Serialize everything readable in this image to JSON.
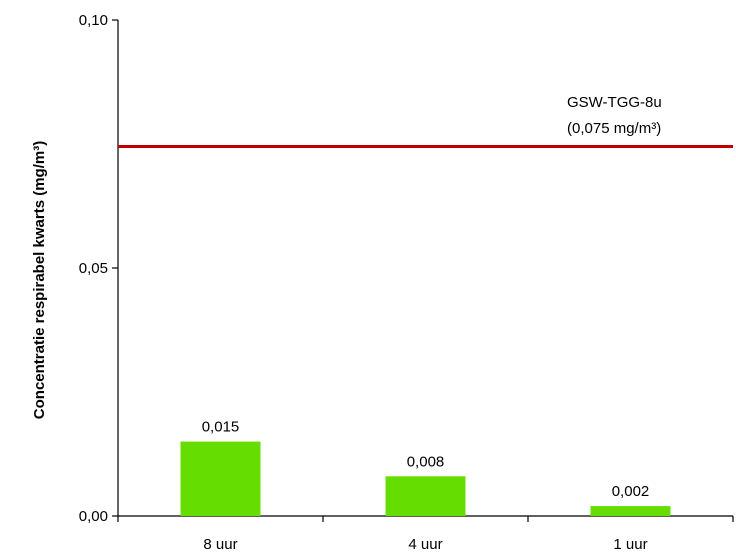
{
  "chart_data": {
    "type": "bar",
    "categories": [
      "8 uur",
      "4 uur",
      "1 uur"
    ],
    "values": [
      0.015,
      0.008,
      0.002
    ],
    "value_labels": [
      "0,015",
      "0,008",
      "0,002"
    ],
    "ylabel": "Concentratie respirabel kwarts (mg/m³)",
    "ylim": [
      0,
      0.1
    ],
    "yticks": [
      0,
      0.05,
      0.1
    ],
    "ytick_labels": [
      "0,00",
      "0,05",
      "0,10"
    ],
    "grid": false,
    "bar_color": "#66dd00",
    "reference_line": {
      "value": 0.0745,
      "label_line1": "GSW-TGG-8u",
      "label_line2": "(0,075 mg/m³)",
      "color": "#c00000"
    }
  }
}
